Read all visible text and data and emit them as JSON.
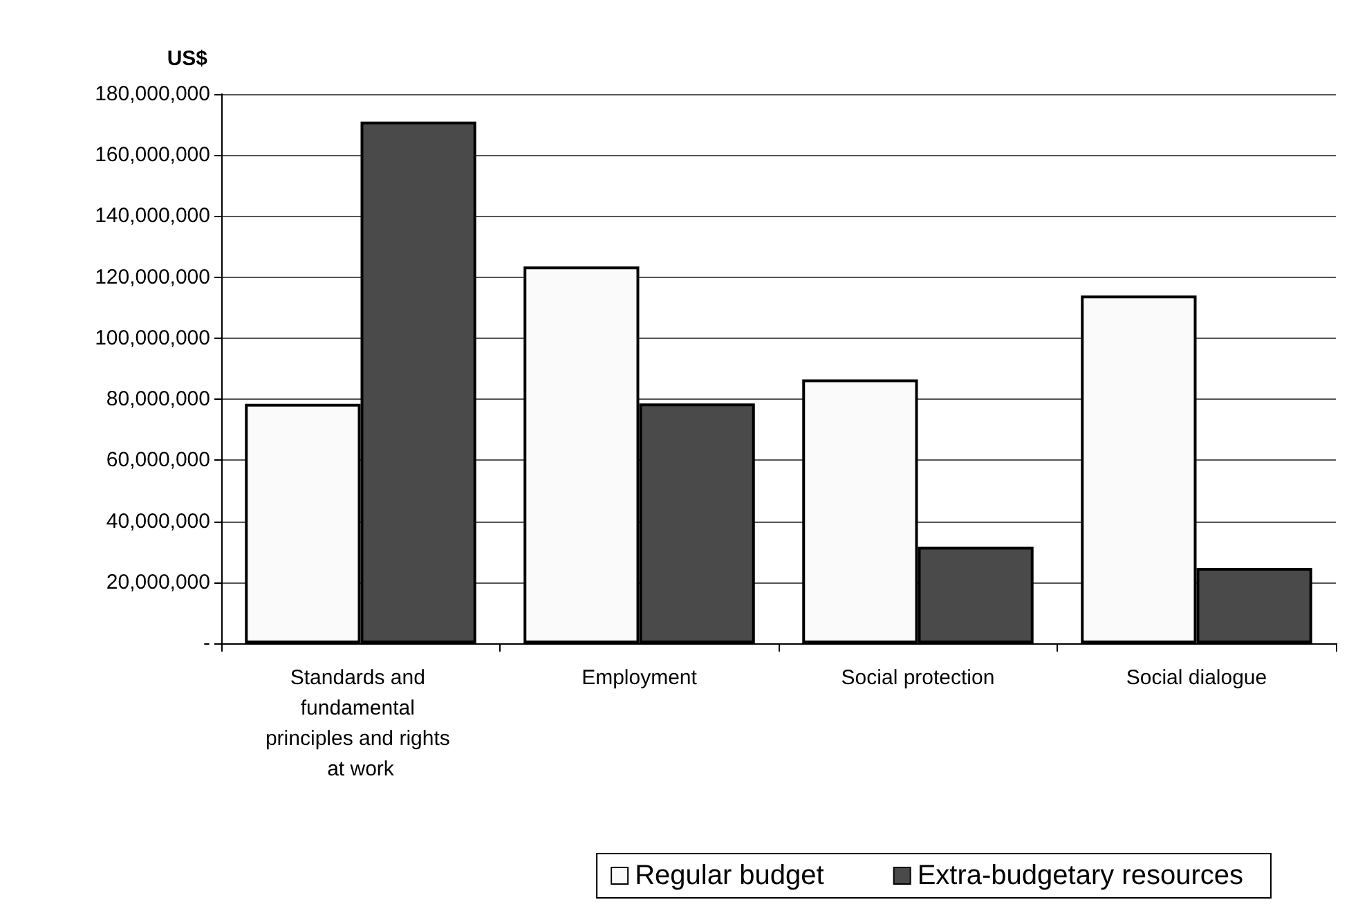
{
  "chart_data": {
    "type": "bar",
    "ylabel": "US$",
    "categories": [
      "Standards and fundamental principles and rights at work",
      "Employment",
      "Social protection",
      "Social dialogue"
    ],
    "series": [
      {
        "name": "Regular budget",
        "color": "#fafafa",
        "values": [
          78500000,
          123500000,
          86500000,
          114000000
        ]
      },
      {
        "name": "Extra-budgetary resources",
        "color": "#4a4a4a",
        "values": [
          171000000,
          78600000,
          31600000,
          24700000
        ]
      }
    ],
    "ylim": [
      0,
      180000000
    ],
    "yticks": [
      {
        "value": 0,
        "label": "-"
      },
      {
        "value": 20000000,
        "label": "20,000,000"
      },
      {
        "value": 40000000,
        "label": "40,000,000"
      },
      {
        "value": 60000000,
        "label": "60,000,000"
      },
      {
        "value": 80000000,
        "label": "80,000,000"
      },
      {
        "value": 100000000,
        "label": "100,000,000"
      },
      {
        "value": 120000000,
        "label": "120,000,000"
      },
      {
        "value": 140000000,
        "label": "140,000,000"
      },
      {
        "value": 160000000,
        "label": "160,000,000"
      },
      {
        "value": 180000000,
        "label": "180,000,000"
      }
    ],
    "grid": "y",
    "legend": "bottom right"
  }
}
